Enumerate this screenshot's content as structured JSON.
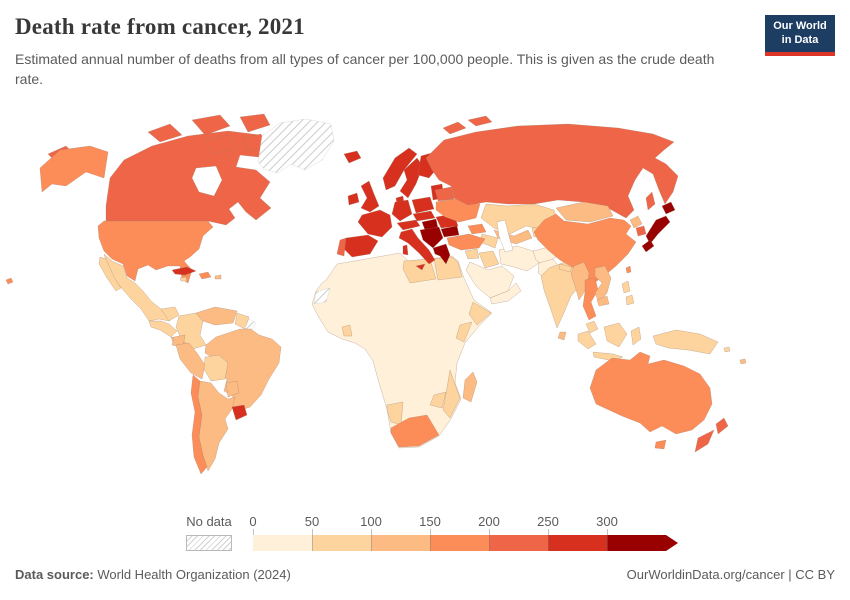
{
  "header": {
    "title": "Death rate from cancer, 2021",
    "subtitle": "Estimated annual number of deaths from all types of cancer per 100,000 people. This is given as the crude death rate.",
    "logo": {
      "line1": "Our World",
      "line2": "in Data",
      "bg_color": "#1d3d63",
      "accent_color": "#dc3426"
    }
  },
  "legend": {
    "no_data_label": "No data",
    "ticks": [
      "0",
      "50",
      "100",
      "150",
      "200",
      "250",
      "300"
    ],
    "band_order": [
      "0-50",
      "50-100",
      "100-150",
      "150-200",
      "200-250",
      "250-300",
      "300+"
    ],
    "band_colors": {
      "0-50": "#fef0d9",
      "50-100": "#fdd49e",
      "100-150": "#fdbb84",
      "150-200": "#fc8d59",
      "200-250": "#ef6548",
      "250-300": "#d7301f",
      "300+": "#990000"
    }
  },
  "footer": {
    "source_label": "Data source:",
    "source_value": " World Health Organization (2024)",
    "rights": "OurWorldinData.org/cancer | CC BY"
  },
  "chart_data": {
    "type": "choropleth",
    "title": "Death rate from cancer, 2021",
    "metric": "Estimated annual deaths from all types of cancer per 100,000 people (crude death rate)",
    "year": "2021",
    "scale_bins": [
      0,
      50,
      100,
      150,
      200,
      250,
      300
    ],
    "scale_open_ended": true,
    "no_data_regions": [
      "Greenland",
      "French Guiana",
      "Western Sahara"
    ],
    "regions": {
      "usa": "150-200",
      "canada": "200-250",
      "greenland": "no_data",
      "mexico": "50-100",
      "central_america": "50-100",
      "costa_rica_panama": "100-150",
      "cuba": "250-300",
      "hispaniola": "150-200",
      "jamaica": "50-100",
      "puerto_rico": "100-150",
      "colombia": "50-100",
      "venezuela": "100-150",
      "guyana_suriname": "50-100",
      "french_guiana": "no_data",
      "brazil": "100-150",
      "ecuador": "100-150",
      "peru": "100-150",
      "bolivia": "50-100",
      "paraguay": "100-150",
      "chile": "150-200",
      "argentina": "100-150",
      "uruguay": "250-300",
      "iceland": "250-300",
      "ireland": "250-300",
      "united_kingdom": "250-300",
      "norway": "250-300",
      "sweden": "250-300",
      "finland": "250-300",
      "denmark": "250-300",
      "baltic_states": "250-300",
      "belarus": "200-250",
      "poland": "250-300",
      "germany": "250-300",
      "france": "250-300",
      "spain": "250-300",
      "portugal": "200-250",
      "czech_slovakia": "250-300",
      "austria_switzerland": "250-300",
      "hungary": "300+",
      "balkans": "300+",
      "romania": "250-300",
      "bulgaria": "300+",
      "greece": "300+",
      "italy": "250-300",
      "ukraine": "150-200",
      "russia": "200-250",
      "kazakhstan": "50-100",
      "uzbekistan": "100-150",
      "turkmenistan": "50-100",
      "kyrgyz_tajik": "50-100",
      "caucasus": "150-200",
      "turkey": "150-200",
      "syria": "50-100",
      "iraq": "50-100",
      "saudi_arabia": "0-50",
      "yemen_oman": "0-50",
      "iran": "0-50",
      "afghanistan": "0-50",
      "pakistan": "0-50",
      "india": "50-100",
      "nepal": "50-100",
      "bangladesh": "50-100",
      "sri_lanka": "100-150",
      "mongolia": "100-150",
      "china": "150-200",
      "north_korea": "100-150",
      "south_korea": "200-250",
      "japan": "300+",
      "taiwan": "150-200",
      "myanmar": "100-150",
      "thailand": "150-200",
      "laos_vietnam": "100-150",
      "cambodia": "100-150",
      "malaysia": "50-100",
      "philippines": "50-100",
      "indonesia": "50-100",
      "new_guinea": "50-100",
      "australia": "150-200",
      "new_zealand": "200-250",
      "africa_other": "0-50",
      "western_sahara": "no_data",
      "libya": "50-100",
      "egypt": "50-100",
      "ghana": "50-100",
      "somalia": "50-100",
      "kenya": "50-100",
      "mozambique": "50-100",
      "zimbabwe": "50-100",
      "namibia": "50-100",
      "south_africa": "150-200",
      "madagascar": "100-150",
      "fiji": "100-150"
    }
  }
}
